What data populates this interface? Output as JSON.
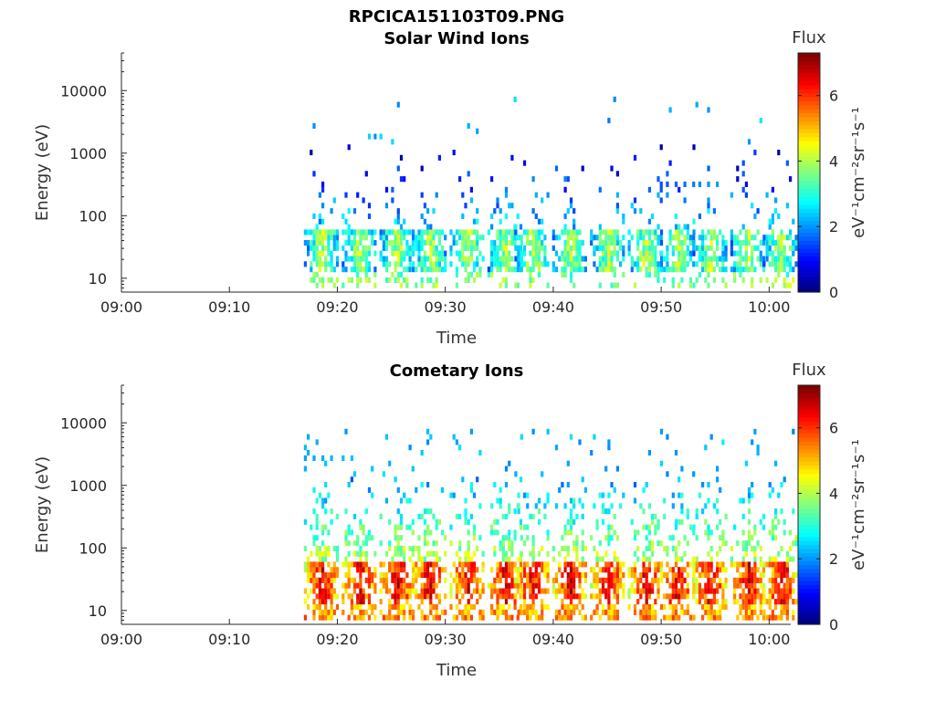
{
  "figure": {
    "filename": "RPCICA151103T09.PNG"
  },
  "chart_data": [
    {
      "type": "heatmap",
      "title": "Solar Wind Ions",
      "xlabel": "Time",
      "ylabel": "Energy (eV)",
      "yscale": "log",
      "xlim": [
        "09:00",
        "10:02"
      ],
      "ylim": [
        6,
        40000
      ],
      "x_ticks": [
        "09:00",
        "09:10",
        "09:20",
        "09:30",
        "09:40",
        "09:50",
        "10:00"
      ],
      "y_ticks": [
        "10",
        "100",
        "1000",
        "10000"
      ],
      "colorbar": {
        "label": "Flux",
        "unit": "eV⁻¹cm⁻²sr⁻¹s⁻¹",
        "range": [
          0,
          7.3
        ],
        "ticks": [
          "0",
          "2",
          "4",
          "6"
        ],
        "colormap": "jet"
      },
      "bursts_minutes_after_0900": [
        18.5,
        22.0,
        25.5,
        28.5,
        32.0,
        35.5,
        38.0,
        41.5,
        45.0,
        48.5,
        51.5,
        54.5,
        58.0,
        61.0
      ],
      "core_energy_range_eV": [
        12,
        60
      ],
      "typical_flux_core": 4.0
    },
    {
      "type": "heatmap",
      "title": "Cometary Ions",
      "xlabel": "Time",
      "ylabel": "Energy (eV)",
      "yscale": "log",
      "xlim": [
        "09:00",
        "10:02"
      ],
      "ylim": [
        6,
        40000
      ],
      "x_ticks": [
        "09:00",
        "09:10",
        "09:20",
        "09:30",
        "09:40",
        "09:50",
        "10:00"
      ],
      "y_ticks": [
        "10",
        "100",
        "1000",
        "10000"
      ],
      "colorbar": {
        "label": "Flux",
        "unit": "eV⁻¹cm⁻²sr⁻¹s⁻¹",
        "range": [
          0,
          7.3
        ],
        "ticks": [
          "0",
          "2",
          "4",
          "6"
        ],
        "colormap": "jet"
      },
      "bursts_minutes_after_0900": [
        18.5,
        22.0,
        25.5,
        28.5,
        32.0,
        35.5,
        38.0,
        41.5,
        45.0,
        48.5,
        51.5,
        54.5,
        58.0,
        61.0
      ],
      "core_energy_range_eV": [
        12,
        60
      ],
      "typical_flux_core": 6.5
    }
  ]
}
